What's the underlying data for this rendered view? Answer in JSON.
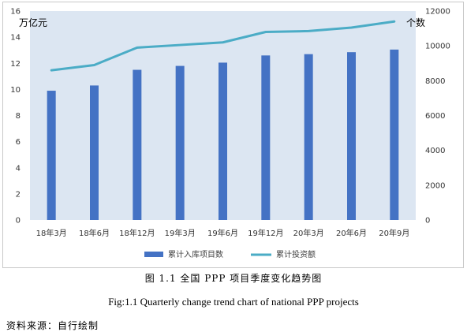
{
  "chart_data": {
    "type": "bar",
    "categories": [
      "18年3月",
      "18年6月",
      "18年12月",
      "19年3月",
      "19年6月",
      "19年12月",
      "20年3月",
      "20年6月",
      "20年9月"
    ],
    "series": [
      {
        "name": "累计入库项目数",
        "type": "bar",
        "axis": "left",
        "color": "#4472c4",
        "values": [
          9.9,
          10.3,
          11.5,
          11.8,
          12.05,
          12.6,
          12.7,
          12.85,
          13.05
        ]
      },
      {
        "name": "累计投资额",
        "type": "line",
        "axis": "right",
        "color": "#4bacc6",
        "values": [
          8600,
          8900,
          9900,
          10050,
          10200,
          10800,
          10850,
          11050,
          11400
        ]
      }
    ],
    "y_left": {
      "label": "万亿元",
      "min": 0,
      "max": 16,
      "ticks": [
        "0",
        "2",
        "4",
        "6",
        "8",
        "10",
        "12",
        "14",
        "16"
      ]
    },
    "y_right": {
      "label": "个数",
      "min": 0,
      "max": 12000,
      "ticks": [
        "0",
        "2000",
        "4000",
        "6000",
        "8000",
        "10000",
        "12000"
      ]
    },
    "legend_position": "bottom",
    "plot_background": "#dce6f2"
  },
  "caption_cn": "图 1.1 全国 PPP 项目季度变化趋势图",
  "caption_en": "Fig:1.1 Quarterly change trend chart of national PPP projects",
  "source": "资料来源：自行绘制"
}
